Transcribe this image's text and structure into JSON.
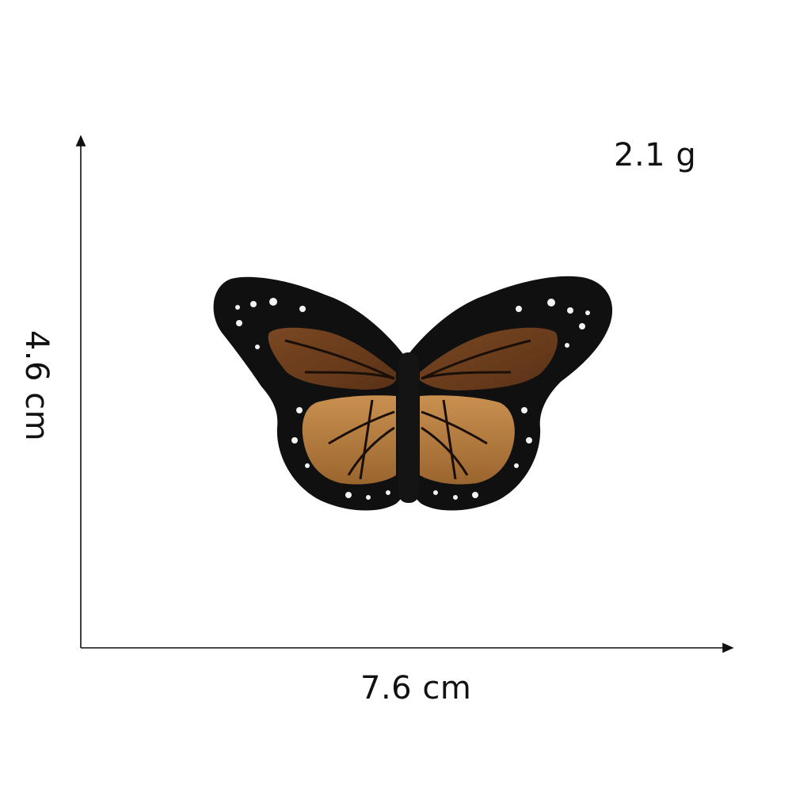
{
  "labels": {
    "weight": "2.1 g",
    "width": "7.6 cm",
    "height": "4.6 cm"
  },
  "colors": {
    "background": "#ffffff",
    "axis": "#111111",
    "patch_border": "#101010",
    "upper_wing": "#6b3d1c",
    "lower_wing": "#b27a3c",
    "spots": "#f2f2f2"
  },
  "product": {
    "name_icon": "butterfly-patch-icon"
  }
}
